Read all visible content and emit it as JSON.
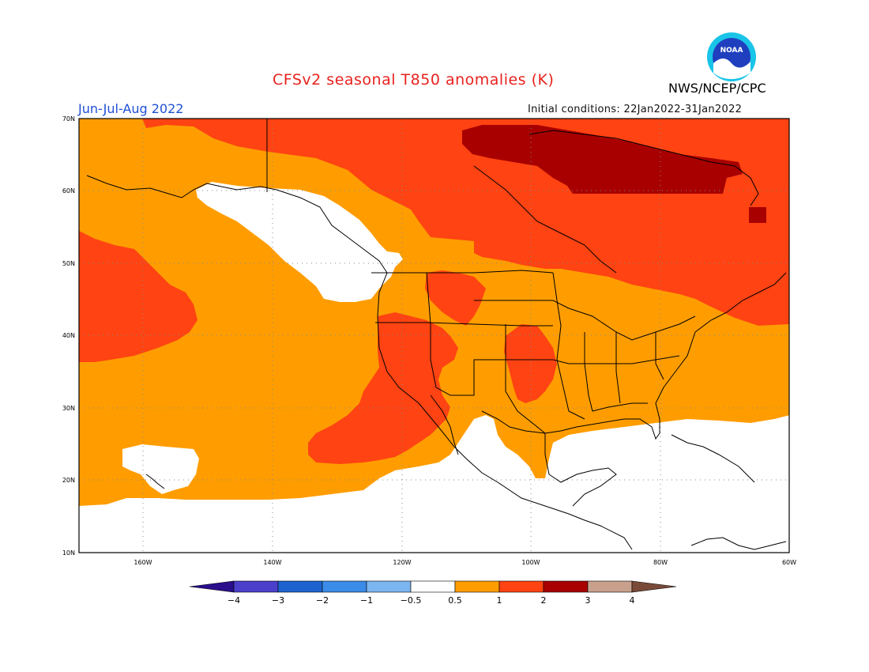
{
  "title": "CFSv2 seasonal T850 anomalies (K)",
  "agency": "NWS/NCEP/CPC",
  "season": "Jun-Jul-Aug 2022",
  "initial_conditions": "Initial conditions: 22Jan2022-31Jan2022",
  "logo_text": "NOAA",
  "lat_labels": [
    "70N",
    "60N",
    "50N",
    "40N",
    "30N",
    "20N",
    "10N"
  ],
  "lon_labels": [
    "160W",
    "140W",
    "120W",
    "100W",
    "80W",
    "60W"
  ],
  "colorbar": {
    "colors": [
      "#2a0e8c",
      "#4b3fcc",
      "#1c63cf",
      "#3b8be8",
      "#7bb6f0",
      "#ffffff",
      "#ff9d00",
      "#ff4312",
      "#a80000",
      "#c8a08c",
      "#7a4a38"
    ],
    "tick_labels": [
      "−4",
      "−3",
      "−2",
      "−1",
      "−0.5",
      "0.5",
      "1",
      "2",
      "3",
      "4"
    ]
  },
  "colors": {
    "anom_05_1": "#ff9d00",
    "anom_1_2": "#ff4312",
    "anom_2_3": "#a80000",
    "neutral": "#ffffff"
  }
}
